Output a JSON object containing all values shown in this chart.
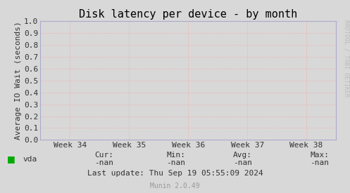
{
  "title": "Disk latency per device - by month",
  "ylabel": "Average IO Wait (seconds)",
  "background_color": "#d8d8d8",
  "plot_bg_color": "#d8d8d8",
  "grid_color": "#ff9999",
  "spine_color": "#aaaacc",
  "xlim": [
    0,
    1
  ],
  "ylim": [
    0.0,
    1.0
  ],
  "yticks": [
    0.0,
    0.1,
    0.2,
    0.3,
    0.4,
    0.5,
    0.6,
    0.7,
    0.8,
    0.9,
    1.0
  ],
  "xtick_labels": [
    "Week 34",
    "Week 35",
    "Week 36",
    "Week 37",
    "Week 38"
  ],
  "xtick_positions": [
    0.1,
    0.3,
    0.5,
    0.7,
    0.9
  ],
  "legend_label": "vda",
  "legend_color": "#00aa00",
  "cur_label": "Cur:",
  "cur_val": "-nan",
  "min_label": "Min:",
  "min_val": "-nan",
  "avg_label": "Avg:",
  "avg_val": "-nan",
  "max_label": "Max:",
  "max_val": "-nan",
  "last_update": "Last update: Thu Sep 19 05:55:09 2024",
  "munin_label": "Munin 2.0.49",
  "watermark": "RRDTOOL / TOBI OETIKER",
  "title_fontsize": 11,
  "axis_label_fontsize": 8,
  "tick_fontsize": 8,
  "annotation_fontsize": 8,
  "watermark_fontsize": 6,
  "munin_fontsize": 7
}
